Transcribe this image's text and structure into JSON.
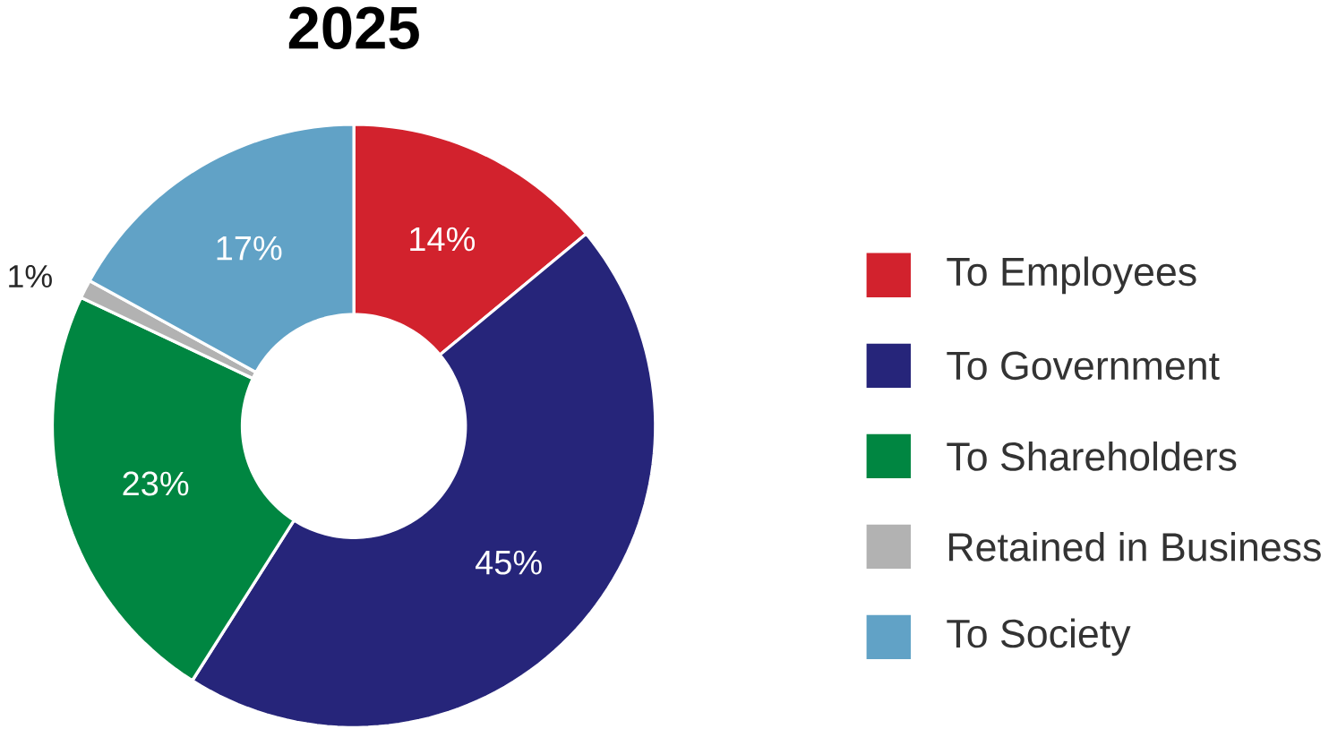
{
  "chart_data": {
    "type": "donut",
    "title": "2025",
    "categories": [
      "To Employees",
      "To Government",
      "To Shareholders",
      "Retained in Business",
      "To Society"
    ],
    "values": [
      14,
      45,
      23,
      1,
      17
    ],
    "value_labels": [
      "14%",
      "45%",
      "23%",
      "1%",
      "17%"
    ],
    "colors": [
      "#d2222d",
      "#26257a",
      "#008641",
      "#b2b2b2",
      "#61a2c6"
    ],
    "legend": "right"
  }
}
